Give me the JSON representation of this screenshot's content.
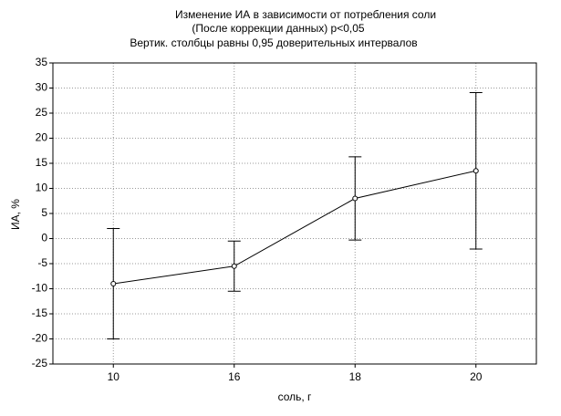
{
  "chart_data": {
    "type": "line",
    "title": "Изменение ИА в зависимости от потребления соли",
    "subtitle": "(После коррекции данных) p<0,05",
    "note": "Вертик. столбцы равны 0,95 доверительных интервалов",
    "x_label": "соль, г",
    "y_label": "ИА, %",
    "categories": [
      "10",
      "16",
      "18",
      "20"
    ],
    "values": [
      -9,
      -5.5,
      8,
      13.5
    ],
    "errors": [
      11,
      5,
      8.3,
      15.6
    ],
    "color": "#000000",
    "ylim": [
      -25,
      35
    ],
    "yticks": [
      -25,
      -20,
      -15,
      -10,
      -5,
      0,
      5,
      10,
      15,
      20,
      25,
      30,
      35
    ],
    "grid": true
  }
}
